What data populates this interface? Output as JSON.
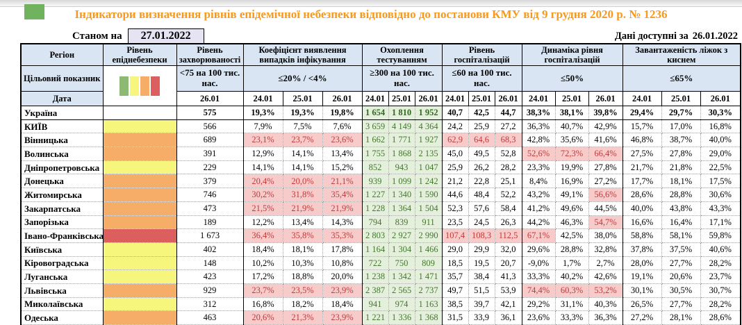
{
  "banner": {
    "title": "Індикатори визначення рівнів епідемічної небезпеки відповідно до постанови КМУ від 9 грудня 2020 р. № 1236",
    "as_of_label": "Станом на",
    "as_of_date": "27.01.2022",
    "available_label": "Дані доступні за",
    "available_date": "26.01.2022"
  },
  "colors": {
    "title_text": "#F8991D",
    "header_bg": "#D9E5F3",
    "date_box_bg": "#E6E4F2",
    "level_green": "#8CBA72",
    "level_yellow": "#F6F67D",
    "level_orange": "#F5AD68",
    "level_red": "#DD5E5E",
    "good_cell_bg": "#E4F0DB",
    "good_cell_text": "#44762F",
    "bad_cell_bg": "#F8CBCB",
    "bad_cell_text": "#BE3A3A",
    "title_marker_green": "#6FB35F"
  },
  "table": {
    "corner": {
      "region_label": "Регіон",
      "level_label": "Рівень епіднебезпеки",
      "target_label": "Цільовий показник",
      "date_label": "Дата"
    },
    "legend_keys": [
      "level_green",
      "level_yellow",
      "level_orange",
      "level_red"
    ],
    "groups": [
      {
        "label": "Рівень захворюваності",
        "target": "<75 на 100 тис. нас.",
        "dates": [
          "26.01"
        ]
      },
      {
        "label": "Коефіцієнт виявлення випадків інфікування",
        "target": "≤20% / <4%",
        "dates": [
          "24.01",
          "25.01",
          "26.01"
        ]
      },
      {
        "label": "Охоплення тестуванням",
        "target": "≥300 на 100 тис. нас.",
        "dates": [
          "24.01",
          "25.01",
          "26.01"
        ]
      },
      {
        "label": "Рівень госпіталізацій",
        "target": "≤60 на 100 тис. нас.",
        "dates": [
          "24.01",
          "25.01",
          "26.01"
        ]
      },
      {
        "label": "Динаміка рівня госпіталізацій",
        "target": "≤50%",
        "dates": [
          "24.01",
          "25.01",
          "26.01"
        ]
      },
      {
        "label": "Завантаженість ліжок з киснем",
        "target": "≤65%",
        "dates": [
          "24.01",
          "25.01",
          "26.01"
        ]
      }
    ],
    "rows": [
      {
        "region": "Україна",
        "level": "none",
        "bold": true,
        "cells": [
          [
            "575",
            ""
          ],
          [
            "19,3%",
            ""
          ],
          [
            "19,3%",
            ""
          ],
          [
            "19,8%",
            ""
          ],
          [
            "1 654",
            "g"
          ],
          [
            "1 810",
            "g"
          ],
          [
            "1 952",
            "g"
          ],
          [
            "40,7",
            ""
          ],
          [
            "42,5",
            ""
          ],
          [
            "44,7",
            ""
          ],
          [
            "38,3%",
            ""
          ],
          [
            "38,1%",
            ""
          ],
          [
            "39,8%",
            ""
          ],
          [
            "29,4%",
            ""
          ],
          [
            "29,7%",
            ""
          ],
          [
            "30,3%",
            ""
          ]
        ]
      },
      {
        "region": "КИЇВ",
        "level": "yellow",
        "cells": [
          [
            "566",
            ""
          ],
          [
            "7,9%",
            ""
          ],
          [
            "7,5%",
            ""
          ],
          [
            "7,6%",
            ""
          ],
          [
            "3 659",
            "g"
          ],
          [
            "4 149",
            "g"
          ],
          [
            "4 364",
            "g"
          ],
          [
            "24,2",
            ""
          ],
          [
            "25,9",
            ""
          ],
          [
            "27,2",
            ""
          ],
          [
            "36,3%",
            ""
          ],
          [
            "40,7%",
            ""
          ],
          [
            "42,9%",
            ""
          ],
          [
            "15,7%",
            ""
          ],
          [
            "17,0%",
            ""
          ],
          [
            "16,8%",
            ""
          ]
        ]
      },
      {
        "region": "Вінницька",
        "level": "orange",
        "cells": [
          [
            "689",
            ""
          ],
          [
            "23,1%",
            "p"
          ],
          [
            "23,7%",
            "p"
          ],
          [
            "23,6%",
            "p"
          ],
          [
            "1 662",
            "g"
          ],
          [
            "1 771",
            "g"
          ],
          [
            "1 927",
            "g"
          ],
          [
            "62,9",
            "p"
          ],
          [
            "64,6",
            "p"
          ],
          [
            "68,3",
            "p"
          ],
          [
            "42,8%",
            ""
          ],
          [
            "35,6%",
            ""
          ],
          [
            "41,6%",
            ""
          ],
          [
            "46,8%",
            ""
          ],
          [
            "38,7%",
            ""
          ],
          [
            "40,0%",
            ""
          ]
        ]
      },
      {
        "region": "Волинська",
        "level": "orange",
        "cells": [
          [
            "391",
            ""
          ],
          [
            "12,9%",
            ""
          ],
          [
            "14,1%",
            ""
          ],
          [
            "13,4%",
            ""
          ],
          [
            "1 755",
            "g"
          ],
          [
            "1 868",
            "g"
          ],
          [
            "2 135",
            "g"
          ],
          [
            "45,0",
            ""
          ],
          [
            "49,5",
            ""
          ],
          [
            "52,8",
            ""
          ],
          [
            "52,6%",
            "p"
          ],
          [
            "72,3%",
            "p"
          ],
          [
            "66,4%",
            "p"
          ],
          [
            "27,5%",
            ""
          ],
          [
            "27,8%",
            ""
          ],
          [
            "29,0%",
            ""
          ]
        ]
      },
      {
        "region": "Дніпропетровська",
        "level": "yellow",
        "cells": [
          [
            "229",
            ""
          ],
          [
            "14,1%",
            ""
          ],
          [
            "14,1%",
            ""
          ],
          [
            "15,2%",
            ""
          ],
          [
            "852",
            "g"
          ],
          [
            "943",
            "g"
          ],
          [
            "1 047",
            "g"
          ],
          [
            "25,9",
            ""
          ],
          [
            "26,2",
            ""
          ],
          [
            "28,2",
            ""
          ],
          [
            "23,3%",
            ""
          ],
          [
            "19,9%",
            ""
          ],
          [
            "27,8%",
            ""
          ],
          [
            "21,7%",
            ""
          ],
          [
            "21,8%",
            ""
          ],
          [
            "22,5%",
            ""
          ]
        ]
      },
      {
        "region": "Донецька",
        "level": "orange",
        "cells": [
          [
            "379",
            ""
          ],
          [
            "20,4%",
            "p"
          ],
          [
            "20,0%",
            "p"
          ],
          [
            "21,1%",
            "p"
          ],
          [
            "939",
            "g"
          ],
          [
            "1 099",
            "g"
          ],
          [
            "1 242",
            "g"
          ],
          [
            "21,2",
            ""
          ],
          [
            "22,8",
            ""
          ],
          [
            "25,1",
            ""
          ],
          [
            "8,4%",
            ""
          ],
          [
            "16,9%",
            ""
          ],
          [
            "27,2%",
            ""
          ],
          [
            "17,7%",
            ""
          ],
          [
            "18,1%",
            ""
          ],
          [
            "17,5%",
            ""
          ]
        ]
      },
      {
        "region": "Житомирська",
        "level": "orange",
        "cells": [
          [
            "746",
            ""
          ],
          [
            "30,2%",
            "p"
          ],
          [
            "31,8%",
            "p"
          ],
          [
            "35,4%",
            "p"
          ],
          [
            "1 227",
            "g"
          ],
          [
            "1 340",
            "g"
          ],
          [
            "1 590",
            "g"
          ],
          [
            "44,6",
            ""
          ],
          [
            "48,4",
            ""
          ],
          [
            "52,2",
            ""
          ],
          [
            "43,2%",
            ""
          ],
          [
            "49,1%",
            ""
          ],
          [
            "56,6%",
            "p"
          ],
          [
            "28,6%",
            ""
          ],
          [
            "28,8%",
            ""
          ],
          [
            "30,6%",
            ""
          ]
        ]
      },
      {
        "region": "Закарпатська",
        "level": "orange",
        "cells": [
          [
            "473",
            ""
          ],
          [
            "21,5%",
            "p"
          ],
          [
            "21,9%",
            "p"
          ],
          [
            "21,9%",
            "p"
          ],
          [
            "1 228",
            "g"
          ],
          [
            "1 364",
            "g"
          ],
          [
            "1 504",
            "g"
          ],
          [
            "52,3",
            ""
          ],
          [
            "57,6",
            ""
          ],
          [
            "58,4",
            ""
          ],
          [
            "41,2%",
            ""
          ],
          [
            "49,6%",
            ""
          ],
          [
            "44,5%",
            ""
          ],
          [
            "40,0%",
            ""
          ],
          [
            "43,8%",
            ""
          ],
          [
            "43,3%",
            ""
          ]
        ]
      },
      {
        "region": "Запорізька",
        "level": "orange",
        "cells": [
          [
            "189",
            ""
          ],
          [
            "12,2%",
            ""
          ],
          [
            "13,4%",
            ""
          ],
          [
            "14,3%",
            ""
          ],
          [
            "794",
            "g"
          ],
          [
            "839",
            "g"
          ],
          [
            "911",
            "g"
          ],
          [
            "23,5",
            ""
          ],
          [
            "24,5",
            ""
          ],
          [
            "26,3",
            ""
          ],
          [
            "44,2%",
            ""
          ],
          [
            "46,3%",
            ""
          ],
          [
            "54,7%",
            "p"
          ],
          [
            "16,6%",
            ""
          ],
          [
            "16,4%",
            ""
          ],
          [
            "17,1%",
            ""
          ]
        ]
      },
      {
        "region": "Івано-Франківська",
        "level": "red",
        "cells": [
          [
            "1 673",
            ""
          ],
          [
            "36,4%",
            "p"
          ],
          [
            "35,8%",
            "p"
          ],
          [
            "35,3%",
            "p"
          ],
          [
            "2 803",
            "g"
          ],
          [
            "2 927",
            "g"
          ],
          [
            "2 990",
            "g"
          ],
          [
            "107,4",
            "p"
          ],
          [
            "108,3",
            "p"
          ],
          [
            "112,5",
            "p"
          ],
          [
            "67,1%",
            "p"
          ],
          [
            "42,5%",
            ""
          ],
          [
            "38,0%",
            ""
          ],
          [
            "58,8%",
            ""
          ],
          [
            "58,1%",
            ""
          ],
          [
            "59,8%",
            ""
          ]
        ]
      },
      {
        "region": "Київська",
        "level": "yellow",
        "cells": [
          [
            "402",
            ""
          ],
          [
            "18,4%",
            ""
          ],
          [
            "18,1%",
            ""
          ],
          [
            "17,8%",
            ""
          ],
          [
            "1 164",
            "g"
          ],
          [
            "1 304",
            "g"
          ],
          [
            "1 466",
            "g"
          ],
          [
            "29,0",
            ""
          ],
          [
            "29,9",
            ""
          ],
          [
            "32,0",
            ""
          ],
          [
            "29,6%",
            ""
          ],
          [
            "28,8%",
            ""
          ],
          [
            "32,8%",
            ""
          ],
          [
            "37,8%",
            ""
          ],
          [
            "37,5%",
            ""
          ],
          [
            "40,6%",
            ""
          ]
        ]
      },
      {
        "region": "Кіровоградська",
        "level": "yellow",
        "cells": [
          [
            "148",
            ""
          ],
          [
            "10,2%",
            ""
          ],
          [
            "10,3%",
            ""
          ],
          [
            "10,8%",
            ""
          ],
          [
            "722",
            "g"
          ],
          [
            "750",
            "g"
          ],
          [
            "809",
            "g"
          ],
          [
            "18,5",
            ""
          ],
          [
            "19,5",
            ""
          ],
          [
            "20,7",
            ""
          ],
          [
            "-9,0%",
            ""
          ],
          [
            "1,7%",
            ""
          ],
          [
            "2,7%",
            ""
          ],
          [
            "28,0%",
            ""
          ],
          [
            "27,7%",
            ""
          ],
          [
            "28,2%",
            ""
          ]
        ]
      },
      {
        "region": "Луганська",
        "level": "yellow",
        "cells": [
          [
            "423",
            ""
          ],
          [
            "17,2%",
            ""
          ],
          [
            "18,8%",
            ""
          ],
          [
            "20,0%",
            ""
          ],
          [
            "1 238",
            "g"
          ],
          [
            "1 342",
            "g"
          ],
          [
            "1 471",
            "g"
          ],
          [
            "35,7",
            ""
          ],
          [
            "38,4",
            ""
          ],
          [
            "41,3",
            ""
          ],
          [
            "33,3%",
            ""
          ],
          [
            "40,2%",
            ""
          ],
          [
            "42,6%",
            ""
          ],
          [
            "19,1%",
            ""
          ],
          [
            "20,6%",
            ""
          ],
          [
            "23,7%",
            ""
          ]
        ]
      },
      {
        "region": "Львівська",
        "level": "orange",
        "cells": [
          [
            "929",
            ""
          ],
          [
            "23,7%",
            "p"
          ],
          [
            "23,5%",
            "p"
          ],
          [
            "23,9%",
            "p"
          ],
          [
            "2 387",
            "g"
          ],
          [
            "2 565",
            "g"
          ],
          [
            "2 737",
            "g"
          ],
          [
            "49,7",
            ""
          ],
          [
            "51,5",
            ""
          ],
          [
            "53,9",
            ""
          ],
          [
            "74,4%",
            "p"
          ],
          [
            "60,3%",
            "p"
          ],
          [
            "53,2%",
            "p"
          ],
          [
            "30,1%",
            ""
          ],
          [
            "30,5%",
            ""
          ],
          [
            "30,7%",
            ""
          ]
        ]
      },
      {
        "region": "Миколаївська",
        "level": "yellow",
        "cells": [
          [
            "312",
            ""
          ],
          [
            "16,8%",
            ""
          ],
          [
            "18,2%",
            ""
          ],
          [
            "18,4%",
            ""
          ],
          [
            "941",
            "g"
          ],
          [
            "974",
            "g"
          ],
          [
            "1 163",
            "g"
          ],
          [
            "38,5",
            ""
          ],
          [
            "39,7",
            ""
          ],
          [
            "42,1",
            ""
          ],
          [
            "29,2%",
            ""
          ],
          [
            "31,1%",
            ""
          ],
          [
            "40,3%",
            ""
          ],
          [
            "26,5%",
            ""
          ],
          [
            "27,7%",
            ""
          ],
          [
            "28,2%",
            ""
          ]
        ]
      },
      {
        "region": "Одеська",
        "level": "orange",
        "cells": [
          [
            "463",
            ""
          ],
          [
            "20,6%",
            "p"
          ],
          [
            "21,3%",
            "p"
          ],
          [
            "23,9%",
            "p"
          ],
          [
            "1 221",
            "g"
          ],
          [
            "1 336",
            "g"
          ],
          [
            "1 368",
            "g"
          ],
          [
            "31,5",
            ""
          ],
          [
            "33,9",
            ""
          ],
          [
            "36,1",
            ""
          ],
          [
            "23,6%",
            ""
          ],
          [
            "33,3%",
            ""
          ],
          [
            "36,3%",
            ""
          ],
          [
            "27,2%",
            ""
          ],
          [
            "28,1%",
            ""
          ],
          [
            "28,6%",
            ""
          ]
        ]
      }
    ],
    "partial_row": {
      "level": "yellow"
    }
  }
}
